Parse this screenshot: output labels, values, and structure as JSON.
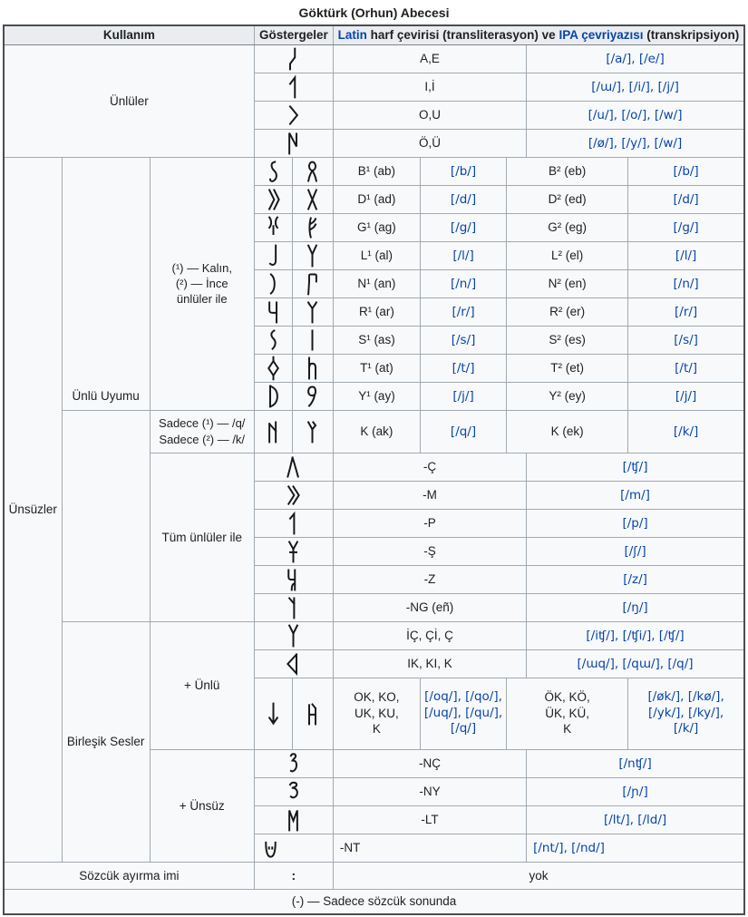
{
  "title": "Göktürk (Orhun) Abecesi",
  "header": {
    "kullanim": "Kullanım",
    "gostergeler": "Göstergeler",
    "latin_link": "Latin",
    "mid": " harf çevirisi (transliterasyon) ve ",
    "ipa_link": "IPA çevriyazısı",
    "end": " (transkripsiyon)"
  },
  "labels": {
    "unluler": "Ünlüler",
    "unsuzler": "Ünsüzler",
    "unlu_uyumu": "Ünlü Uyumu",
    "birlesik": "Birleşik Sesler",
    "kalin_note": "(¹) — Kalın,\n(²) — İnce\nünlüler ile",
    "sadece_note": "Sadece (¹) — /q/\nSadece (²) — /k/",
    "tum_unluler": "Tüm ünlüler ile",
    "arti_unlu": "+ Ünlü",
    "arti_unsuz": "+ Ünsüz",
    "sozcuk": "Sözcük ayırma imi",
    "separator": ":",
    "yok": "yok",
    "footer": "(-) — Sadece sözcük sonunda"
  },
  "vowels": [
    {
      "latin": "A,E",
      "ipa": "[/a/], [/e/]"
    },
    {
      "latin": "I,İ",
      "ipa": "[/ɯ/], [/i/], [/j/]"
    },
    {
      "latin": "O,U",
      "ipa": "[/u/], [/o/], [/w/]"
    },
    {
      "latin": "Ö,Ü",
      "ipa": "[/ø/], [/y/], [/w/]"
    }
  ],
  "paired": [
    {
      "l1": "B¹ (ab)",
      "i1": "[/b/]",
      "l2": "B² (eb)",
      "i2": "[/b/]"
    },
    {
      "l1": "D¹ (ad)",
      "i1": "[/d/]",
      "l2": "D² (ed)",
      "i2": "[/d/]"
    },
    {
      "l1": "G¹ (ag)",
      "i1": "[/g/]",
      "l2": "G² (eg)",
      "i2": "[/g/]"
    },
    {
      "l1": "L¹ (al)",
      "i1": "[/l/]",
      "l2": "L² (el)",
      "i2": "[/l/]"
    },
    {
      "l1": "N¹ (an)",
      "i1": "[/n/]",
      "l2": "N² (en)",
      "i2": "[/n/]"
    },
    {
      "l1": "R¹ (ar)",
      "i1": "[/r/]",
      "l2": "R² (er)",
      "i2": "[/r/]"
    },
    {
      "l1": "S¹ (as)",
      "i1": "[/s/]",
      "l2": "S² (es)",
      "i2": "[/s/]"
    },
    {
      "l1": "T¹ (at)",
      "i1": "[/t/]",
      "l2": "T² (et)",
      "i2": "[/t/]"
    },
    {
      "l1": "Y¹ (ay)",
      "i1": "[/j/]",
      "l2": "Y² (ey)",
      "i2": "[/j/]"
    },
    {
      "l1": "K (ak)",
      "i1": "[/q/]",
      "l2": "K (ek)",
      "i2": "[/k/]"
    }
  ],
  "single": [
    {
      "latin": "-Ç",
      "ipa": "[/ʧ/]"
    },
    {
      "latin": "-M",
      "ipa": "[/m/]"
    },
    {
      "latin": "-P",
      "ipa": "[/p/]"
    },
    {
      "latin": "-Ş",
      "ipa": "[/ʃ/]"
    },
    {
      "latin": "-Z",
      "ipa": "[/z/]"
    },
    {
      "latin": "-NG (eñ)",
      "ipa": "[/ŋ/]"
    }
  ],
  "compound": {
    "ich": {
      "latin": "İÇ, Çİ, Ç",
      "ipa": "[/iʧ/], [/ʧi/], [/ʧ/]"
    },
    "ik": {
      "latin": "IK, KI, K",
      "ipa": "[/ɯq/], [/qɯ/], [/q/]"
    },
    "ok": {
      "l1": "OK, KO,\nUK, KU,\nK",
      "i1": "[/oq/], [/qo/],\n[/uq/], [/qu/],\n[/q/]",
      "l2": "ÖK, KÖ,\nÜK, KÜ,\nK",
      "i2": "[/øk/], [/kø/],\n[/yk/], [/ky/],\n[/k/]"
    },
    "nch": {
      "latin": "-NÇ",
      "ipa": "[/nʧ/]"
    },
    "ny": {
      "latin": "-NY",
      "ipa": "[/ɲ/]"
    },
    "lt": {
      "latin": "-LT",
      "ipa": "[/lt/], [/ld/]"
    },
    "nt": {
      "latin": "-NT",
      "ipa": "[/nt/], [/nd/]"
    }
  },
  "colors": {
    "link_blue": "#0645ad",
    "header_bg": "#eaecf0",
    "cell_bg": "#f8f9fa",
    "border": "#a2a9b1"
  },
  "rune_icons": [
    "rune-a-icon",
    "rune-i-icon",
    "rune-o-u-icon",
    "rune-oe-ue-icon",
    "rune-b1-icon",
    "rune-b2-icon",
    "rune-d1-icon",
    "rune-d2-icon",
    "rune-g1-icon",
    "rune-g2-icon",
    "rune-l1-icon",
    "rune-l2-icon",
    "rune-n1-icon",
    "rune-n2-icon",
    "rune-r1-icon",
    "rune-r2-icon",
    "rune-s1-icon",
    "rune-s2-icon",
    "rune-t1-icon",
    "rune-t2-icon",
    "rune-y1-icon",
    "rune-y2-icon",
    "rune-kq-icon",
    "rune-ke-icon",
    "rune-ch-icon",
    "rune-m-icon",
    "rune-p-icon",
    "rune-sh-icon",
    "rune-z-icon",
    "rune-ng-icon",
    "rune-ich-icon",
    "rune-iq-icon",
    "rune-oq-icon",
    "rune-oek-icon",
    "rune-nch-icon",
    "rune-ny-icon",
    "rune-lt-icon",
    "rune-nt-icon"
  ]
}
